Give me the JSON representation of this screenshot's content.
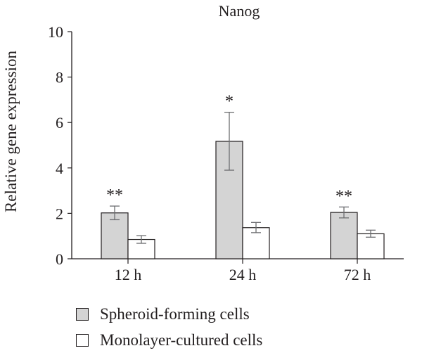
{
  "chart_data": {
    "type": "bar",
    "title": "Nanog",
    "ylabel": "Relative gene expression",
    "xlabel": "",
    "ylim": [
      0,
      10
    ],
    "yticks": [
      0,
      2,
      4,
      6,
      8,
      10
    ],
    "categories": [
      "12 h",
      "24 h",
      "72 h"
    ],
    "series": [
      {
        "name": "Spheroid-forming cells",
        "color": "#d4d4d4",
        "values": [
          2.02,
          5.17,
          2.04
        ],
        "error_low": [
          1.72,
          3.9,
          1.8
        ],
        "error_high": [
          2.32,
          6.45,
          2.28
        ],
        "annotations": [
          "**",
          "*",
          "**"
        ]
      },
      {
        "name": "Monolayer-cultured cells",
        "color": "#ffffff",
        "values": [
          0.85,
          1.37,
          1.1
        ],
        "error_low": [
          0.68,
          1.15,
          0.95
        ],
        "error_high": [
          1.02,
          1.6,
          1.26
        ],
        "annotations": [
          "",
          "",
          ""
        ]
      }
    ],
    "grid": false,
    "legend_position": "bottom-left"
  }
}
